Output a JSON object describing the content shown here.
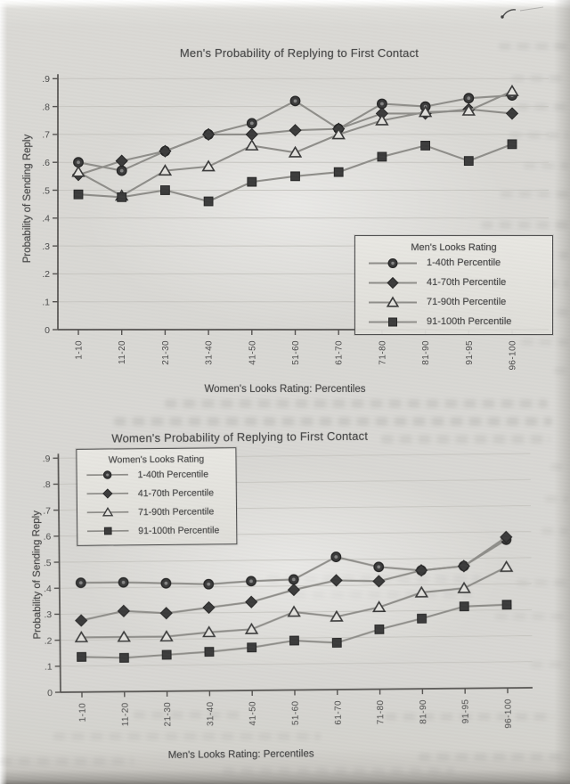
{
  "page": {
    "kind": "scanned book page with two line charts",
    "pen_mark": "small handwritten pen mark, top-right corner"
  },
  "chart_data": [
    {
      "type": "line",
      "title": "Men's Probability of Replying to First Contact",
      "xlabel": "Women's Looks Rating: Percentiles",
      "ylabel": "Probability of Sending Reply",
      "ylim": [
        0,
        0.9
      ],
      "yticks": [
        "0",
        ".1",
        ".2",
        ".3",
        ".4",
        ".5",
        ".6",
        ".7",
        ".8",
        ".9"
      ],
      "grid": true,
      "categories": [
        "1-10",
        "11-20",
        "21-30",
        "31-40",
        "41-50",
        "51-60",
        "61-70",
        "71-80",
        "81-90",
        "91-95",
        "96-100"
      ],
      "legend": {
        "title": "Men's Looks Rating",
        "position": "lower right"
      },
      "series": [
        {
          "name": "1-40th Percentile",
          "marker": "circle",
          "values": [
            0.6,
            0.57,
            0.64,
            0.7,
            0.74,
            0.82,
            0.72,
            0.81,
            0.8,
            0.83,
            0.84
          ]
        },
        {
          "name": "41-70th Percentile",
          "marker": "diamond",
          "values": [
            0.555,
            0.605,
            0.64,
            0.7,
            0.7,
            0.715,
            0.72,
            0.775,
            0.775,
            0.79,
            0.775
          ]
        },
        {
          "name": "71-90th Percentile",
          "marker": "triangle",
          "values": [
            0.565,
            0.48,
            0.57,
            0.585,
            0.66,
            0.635,
            0.7,
            0.75,
            0.78,
            0.785,
            0.855
          ]
        },
        {
          "name": "91-100th Percentile",
          "marker": "square",
          "values": [
            0.485,
            0.475,
            0.5,
            0.46,
            0.53,
            0.55,
            0.565,
            0.62,
            0.66,
            0.605,
            0.665
          ]
        }
      ]
    },
    {
      "type": "line",
      "title": "Women's Probability of Replying to First Contact",
      "xlabel": "Men's Looks Rating: Percentiles",
      "ylabel": "Probability of Sending Reply",
      "ylim": [
        0,
        0.9
      ],
      "yticks": [
        "0",
        ".1",
        ".2",
        ".3",
        ".4",
        ".5",
        ".6",
        ".7",
        ".8",
        ".9"
      ],
      "grid": true,
      "categories": [
        "1-10",
        "11-20",
        "21-30",
        "31-40",
        "41-50",
        "51-60",
        "61-70",
        "71-80",
        "81-90",
        "91-95",
        "96-100"
      ],
      "legend": {
        "title": "Women's Looks Rating",
        "position": "upper left"
      },
      "series": [
        {
          "name": "1-40th Percentile",
          "marker": "circle",
          "values": [
            0.42,
            0.42,
            0.415,
            0.41,
            0.42,
            0.425,
            0.51,
            0.47,
            0.455,
            0.47,
            0.57
          ]
        },
        {
          "name": "41-70th Percentile",
          "marker": "diamond",
          "values": [
            0.275,
            0.31,
            0.3,
            0.32,
            0.34,
            0.385,
            0.42,
            0.415,
            0.455,
            0.47,
            0.58
          ]
        },
        {
          "name": "71-90th Percentile",
          "marker": "triangle",
          "values": [
            0.21,
            0.21,
            0.21,
            0.225,
            0.235,
            0.3,
            0.28,
            0.315,
            0.37,
            0.385,
            0.465
          ]
        },
        {
          "name": "91-100th Percentile",
          "marker": "square",
          "values": [
            0.135,
            0.13,
            0.14,
            0.15,
            0.165,
            0.19,
            0.18,
            0.23,
            0.27,
            0.315,
            0.32
          ]
        }
      ]
    }
  ]
}
